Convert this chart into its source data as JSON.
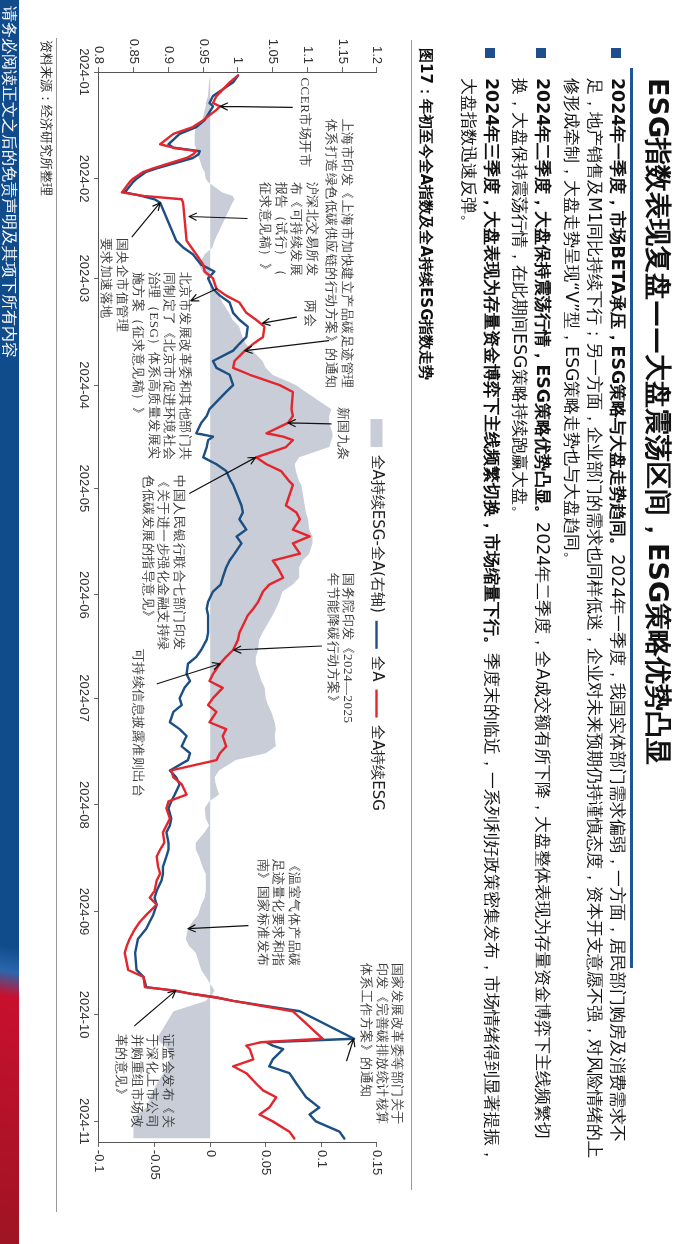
{
  "chart_data": {
    "type": "line",
    "orientation": "horizontal",
    "title": "ESG指数表现复盘——大盘震荡区间，ESG策略优势凸显",
    "subtitle": "图17：年初至今全A指数及全A持续ESG指数走势",
    "x": [
      "2024-01-02",
      "2024-01-04",
      "2024-01-08",
      "2024-01-10",
      "2024-01-11",
      "2024-01-12",
      "2024-01-15",
      "2024-01-17",
      "2024-01-19",
      "2024-01-22",
      "2024-01-23",
      "2024-01-24",
      "2024-01-25",
      "2024-01-26",
      "2024-01-29",
      "2024-01-30",
      "2024-02-01",
      "2024-02-02",
      "2024-02-05",
      "2024-02-06",
      "2024-02-07",
      "2024-02-08",
      "2024-02-19",
      "2024-02-21",
      "2024-02-23",
      "2024-02-26",
      "2024-02-28",
      "2024-03-01",
      "2024-03-04",
      "2024-03-06",
      "2024-03-08",
      "2024-03-11",
      "2024-03-13",
      "2024-03-15",
      "2024-03-18",
      "2024-03-20",
      "2024-03-22",
      "2024-03-25",
      "2024-03-27",
      "2024-03-29",
      "2024-04-01",
      "2024-04-03",
      "2024-04-08",
      "2024-04-10",
      "2024-04-12",
      "2024-04-15",
      "2024-04-16",
      "2024-04-17",
      "2024-04-19",
      "2024-04-22",
      "2024-04-24",
      "2024-04-26",
      "2024-04-29",
      "2024-04-30",
      "2024-05-06",
      "2024-05-08",
      "2024-05-10",
      "2024-05-13",
      "2024-05-15",
      "2024-05-17",
      "2024-05-20",
      "2024-05-22",
      "2024-05-24",
      "2024-05-27",
      "2024-05-29",
      "2024-05-31",
      "2024-06-03",
      "2024-06-05",
      "2024-06-07",
      "2024-06-12",
      "2024-06-14",
      "2024-06-17",
      "2024-06-19",
      "2024-06-21",
      "2024-06-24",
      "2024-06-26",
      "2024-06-28",
      "2024-07-01",
      "2024-07-03",
      "2024-07-05",
      "2024-07-08",
      "2024-07-10",
      "2024-07-12",
      "2024-07-15",
      "2024-07-17",
      "2024-07-19",
      "2024-07-22",
      "2024-07-24",
      "2024-07-26",
      "2024-07-29",
      "2024-07-31",
      "2024-08-02",
      "2024-08-05",
      "2024-08-07",
      "2024-08-09",
      "2024-08-12",
      "2024-08-14",
      "2024-08-16",
      "2024-08-19",
      "2024-08-21",
      "2024-08-23",
      "2024-08-26",
      "2024-08-28",
      "2024-08-30",
      "2024-09-02",
      "2024-09-04",
      "2024-09-06",
      "2024-09-09",
      "2024-09-11",
      "2024-09-13",
      "2024-09-18",
      "2024-09-20",
      "2024-09-23",
      "2024-09-24",
      "2024-09-25",
      "2024-09-26",
      "2024-09-27",
      "2024-09-30",
      "2024-10-08",
      "2024-10-09",
      "2024-10-10",
      "2024-10-11",
      "2024-10-14",
      "2024-10-16",
      "2024-10-18",
      "2024-10-21",
      "2024-10-23",
      "2024-10-25",
      "2024-10-28",
      "2024-10-30",
      "2024-11-01",
      "2024-11-04",
      "2024-11-06"
    ],
    "ylim": [
      "2024-11-07",
      "2024-01-01"
    ],
    "yticks": [
      "2024-01",
      "2024-02",
      "2024-03",
      "2024-04",
      "2024-05",
      "2024-06",
      "2024-07",
      "2024-08",
      "2024-09",
      "2024-10",
      "2024-11"
    ],
    "xlim": [
      -0.1,
      0.15
    ],
    "xticks": [
      -0.1,
      -0.05,
      0,
      0.05,
      0.1,
      0.15
    ],
    "x2lim": [
      0.8,
      1.2
    ],
    "x2ticks": [
      0.8,
      0.85,
      0.9,
      0.95,
      1,
      1.05,
      1.1,
      1.15,
      1.2
    ],
    "series": [
      {
        "name": "全A持续ESG-全A(右轴)",
        "type": "area",
        "color": "#c8cdd8",
        "values": [
          0,
          -0.001,
          -0.002,
          -0.004,
          -0.004,
          -0.005,
          -0.007,
          -0.013,
          -0.014,
          -0.014,
          -0.013,
          -0.013,
          -0.011,
          -0.01,
          -0.007,
          -0.005,
          -0.004,
          -0.002,
          0.011,
          0.02,
          0.022,
          0.02,
          0.004,
          0.002,
          -0.005,
          -0.01,
          -0.007,
          -0.001,
          0.002,
          0.008,
          0.011,
          0.017,
          0.02,
          0.026,
          0.029,
          0.032,
          0.038,
          0.047,
          0.05,
          0.056,
          0.077,
          0.086,
          0.109,
          0.107,
          0.107,
          0.11,
          0.11,
          0.109,
          0.107,
          0.08,
          0.076,
          0.077,
          0.08,
          0.082,
          0.085,
          0.086,
          0.088,
          0.089,
          0.092,
          0.092,
          0.089,
          0.083,
          0.08,
          0.08,
          0.074,
          0.065,
          0.062,
          0.059,
          0.056,
          0.047,
          0.044,
          0.043,
          0.041,
          0.041,
          0.044,
          0.046,
          0.049,
          0.05,
          0.052,
          0.055,
          0.058,
          0.059,
          0.058,
          0.059,
          0.05,
          0.023,
          0.008,
          0.004,
          0.005,
          0.008,
          -0.001,
          -0.005,
          -0.004,
          -0.001,
          -0.005,
          -0.013,
          -0.013,
          -0.01,
          -0.007,
          -0.004,
          -0.004,
          -0.004,
          -0.005,
          -0.008,
          -0.011,
          -0.016,
          -0.02,
          -0.022,
          -0.019,
          -0.013,
          -0.008,
          -0.004,
          0.002,
          0.004,
          0.002,
          -0.001,
          -0.004,
          -0.033,
          -0.048,
          -0.045,
          -0.041,
          -0.038,
          -0.036,
          -0.039,
          -0.042,
          -0.048,
          -0.051,
          -0.054,
          -0.057,
          -0.066,
          -0.069,
          -0.069,
          -0.069
        ]
      },
      {
        "name": "全A",
        "axis": "x2",
        "color": "#1c4f82",
        "values": [
          1,
          0.993,
          0.964,
          0.959,
          0.964,
          0.961,
          0.952,
          0.94,
          0.916,
          0.9,
          0.907,
          0.945,
          0.943,
          0.935,
          0.883,
          0.868,
          0.854,
          0.849,
          0.837,
          0.861,
          0.88,
          0.888,
          0.911,
          0.921,
          0.935,
          0.947,
          0.966,
          0.957,
          0.964,
          0.974,
          0.988,
          0.993,
          1.002,
          1.014,
          1.012,
          1.002,
          0.993,
          0.964,
          0.969,
          0.988,
          0.993,
          0.983,
          0.959,
          0.955,
          0.947,
          0.94,
          0.964,
          0.957,
          0.955,
          0.95,
          0.969,
          0.983,
          0.99,
          0.993,
          1.005,
          1.007,
          1.002,
          1.012,
          0.998,
          1.005,
          0.995,
          0.988,
          0.983,
          0.978,
          0.975,
          0.964,
          0.957,
          0.955,
          0.957,
          0.957,
          0.955,
          0.947,
          0.94,
          0.928,
          0.926,
          0.931,
          0.923,
          0.916,
          0.919,
          0.907,
          0.902,
          0.916,
          0.926,
          0.919,
          0.931,
          0.928,
          0.902,
          0.911,
          0.916,
          0.909,
          0.904,
          0.9,
          0.904,
          0.902,
          0.897,
          0.9,
          0.9,
          0.897,
          0.892,
          0.892,
          0.89,
          0.883,
          0.88,
          0.883,
          0.878,
          0.873,
          0.868,
          0.856,
          0.854,
          0.852,
          0.854,
          0.864,
          0.868,
          0.907,
          0.935,
          0.969,
          0.993,
          1.089,
          1.167,
          1.041,
          1.05,
          1.065,
          1.05,
          1.045,
          1.074,
          1.084,
          1.091,
          1.098,
          1.117,
          1.103,
          1.112,
          1.146,
          1.153
        ]
      },
      {
        "name": "全A持续ESG",
        "axis": "x2",
        "color": "#e3262d",
        "values": [
          1,
          0.988,
          0.969,
          0.964,
          0.974,
          0.969,
          0.95,
          0.935,
          0.907,
          0.888,
          0.907,
          0.94,
          0.935,
          0.926,
          0.878,
          0.864,
          0.849,
          0.844,
          0.833,
          0.864,
          0.919,
          0.921,
          0.926,
          0.933,
          0.94,
          0.95,
          0.952,
          0.964,
          0.969,
          0.983,
          1.002,
          1.012,
          1.026,
          1.038,
          1.036,
          1.022,
          1.01,
          0.995,
          0.993,
          1.017,
          1.06,
          1.079,
          1.077,
          1.079,
          1.072,
          1.041,
          1.065,
          1.079,
          1.069,
          1.026,
          1.041,
          1.062,
          1.074,
          1.079,
          1.069,
          1.084,
          1.089,
          1.079,
          1.103,
          1.079,
          1.089,
          1.05,
          1.057,
          1.065,
          1.045,
          1.036,
          1.029,
          1.022,
          1.014,
          1.002,
          1,
          0.993,
          0.983,
          0.974,
          0.964,
          0.959,
          0.978,
          0.964,
          0.957,
          0.969,
          0.959,
          0.983,
          0.978,
          0.983,
          0.974,
          0.969,
          0.904,
          0.907,
          0.919,
          0.926,
          0.9,
          0.897,
          0.902,
          0.897,
          0.892,
          0.894,
          0.888,
          0.883,
          0.885,
          0.888,
          0.883,
          0.88,
          0.873,
          0.883,
          0.868,
          0.859,
          0.852,
          0.844,
          0.84,
          0.837,
          0.842,
          0.864,
          0.866,
          0.911,
          0.935,
          0.969,
          0.993,
          1.079,
          1.122,
          1.033,
          1.012,
          1.017,
          1.022,
          0.993,
          1.012,
          1.026,
          1.036,
          1.055,
          1.045,
          1.031,
          1.05,
          1.074,
          1.081
        ]
      }
    ],
    "legend": "right",
    "annotations": [
      "2024年一季度，市场BETA承压，ESG策略与大盘走势趋同。2024年一季度，我国实体部门需求偏弱，一方面，居民部门购房及消费需求不足，地产销售及M1同比持续下行；另一方面，企业部门的需求也同样低迷，企业对未来预期仍持谨慎态度，资本开支意愿不强，对风险情绪的上修形成牵制，大盘走势呈现“V”型，ESG策略走势也与大盘趋同。",
      "2024年二季度，大盘保持震荡行情，ESG策略优势凸显。2024年二季度，全A成交额有所下降，大盘整体表现为存量资金博弈下主线频繁切换，大盘保持震荡行情，在此期间ESG策略持续跑赢大盘。",
      "2024年三季度，大盘表现为存量资金博弈下主线频繁切换，市场缩量下行。季度末的临近，一系列利好政策密集发布，市场情绪得到显著提振，大盘指数迅速反弹。",
      {
        "text": "CCER市场开市",
        "x": 0.009,
        "y": "2024-01-11"
      },
      {
        "text": "国央企市值管理要求加速落地",
        "x": -0.045,
        "y": "2024-02-08"
      },
      {
        "text": "沪深北交易所发布《可持续发展报告（试行）（征求意见稿）》",
        "x": -0.019,
        "y": "2024-02-12"
      },
      {
        "text": "北京市发展改革委和其他部门共同制定了《北京市促进环境社会治理（ESG）体系高质量发展实施方案（征求意见稿）》",
        "x": 0.006,
        "y": "2024-03-04"
      },
      {
        "text": "两会",
        "x": 0.047,
        "y": "2024-03-14"
      },
      {
        "text": "上海市印发《上海市加快建立产品碳足迹管理体系打造绿色低碳供应链的行动方案》的通知",
        "x": 0.031,
        "y": "2024-03-22"
      },
      {
        "text": "新国九条",
        "x": 0.07,
        "y": "2024-04-12"
      },
      {
        "text": "中国人民银行联合七部门印发《关于进一步强化金融支持绿色低碳发展的指导意见》",
        "x": 0.041,
        "y": "2024-04-22"
      },
      {
        "text": "国务院印发《2024—2025年节能降碳行动方案》",
        "x": 0.021,
        "y": "2024-06-17"
      },
      {
        "text": "可持续信息披露准则出台",
        "x": 0.009,
        "y": "2024-06-21"
      },
      {
        "text": "《温室气体产品碳足迹量化要求和指南》国家标准发布",
        "x": -0.02,
        "y": "2024-09-06"
      },
      {
        "text": "证监会发布《关于深化上市公司并购重组市场改革的意见》",
        "x": -0.031,
        "y": "2024-09-24"
      },
      {
        "text": "国家发展改革委等部门关于印发《完善碳排放统计核算体系工作方案》的通知",
        "x": 0.129,
        "y": "2024-10-08"
      },
      "资料来源：经济研究所整理",
      "请务必阅读正文之后的免责声明及其项下所有内容"
    ]
  }
}
